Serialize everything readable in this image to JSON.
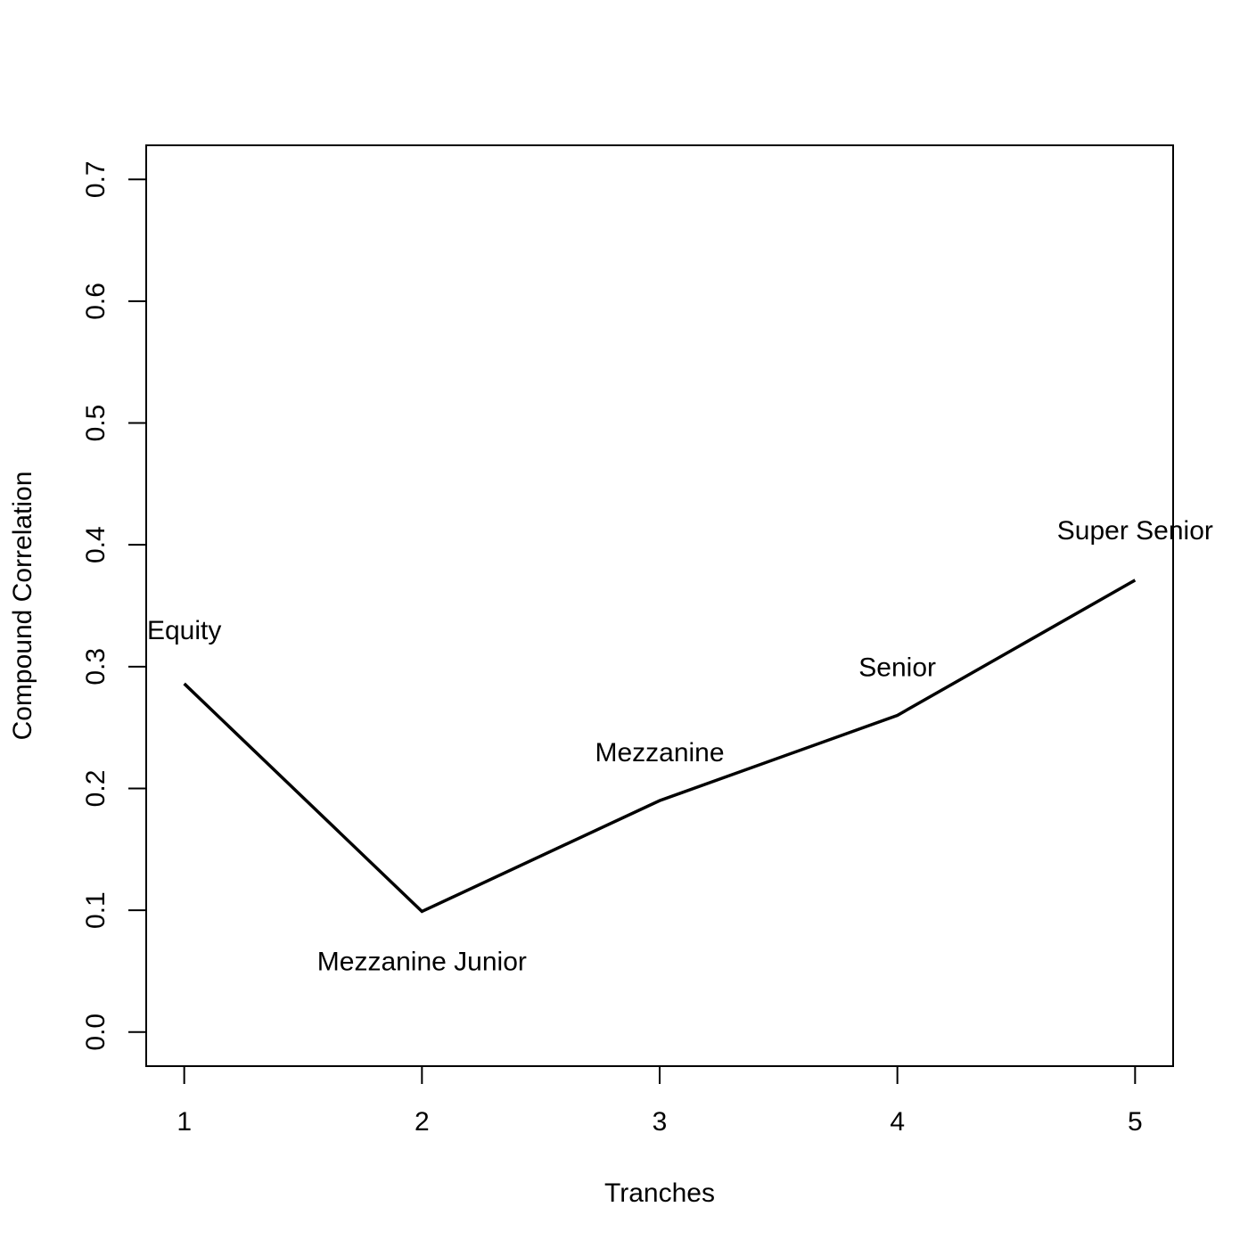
{
  "chart_data": {
    "type": "line",
    "title": "",
    "xlabel": "Tranches",
    "ylabel": "Compound Correlation",
    "x": [
      1,
      2,
      3,
      4,
      5
    ],
    "series": [
      {
        "values": [
          0.286,
          0.099,
          0.19,
          0.26,
          0.371
        ]
      }
    ],
    "point_labels": [
      "Equity",
      "Mezzanine Junior",
      "Mezzanine",
      "Senior",
      "Super Senior"
    ],
    "xticks": [
      1,
      2,
      3,
      4,
      5
    ],
    "xtick_labels": [
      "1",
      "2",
      "3",
      "4",
      "5"
    ],
    "yticks": [
      0.0,
      0.1,
      0.2,
      0.3,
      0.4,
      0.5,
      0.6,
      0.7
    ],
    "ytick_labels": [
      "0.0",
      "0.1",
      "0.2",
      "0.3",
      "0.4",
      "0.5",
      "0.6",
      "0.7"
    ],
    "xlim": [
      0.84,
      5.16
    ],
    "ylim": [
      -0.028,
      0.728
    ],
    "grid": false,
    "legend": false,
    "colors": {
      "line": "#000000",
      "axes": "#000000",
      "background": "#ffffff"
    }
  }
}
